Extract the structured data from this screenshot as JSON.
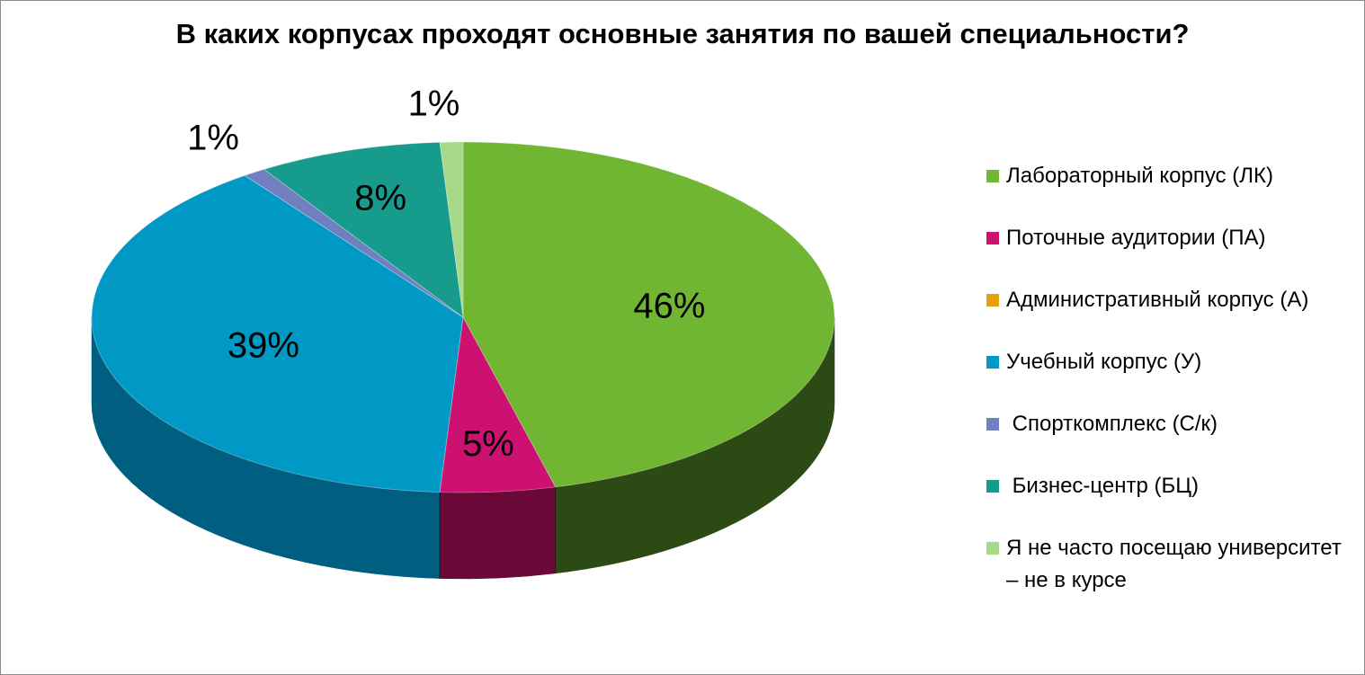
{
  "chart_data": {
    "type": "pie",
    "title": "В каких корпусах проходят основные занятия по вашей специальности?",
    "slices": [
      {
        "name": "Лабораторный корпус (ЛК)",
        "value": 46,
        "label": "46%",
        "color": "#71b632",
        "side_color": "#2c4a14"
      },
      {
        "name": "Поточные аудитории (ПА)",
        "value": 5,
        "label": "5%",
        "color": "#cc1170",
        "side_color": "#6a0838"
      },
      {
        "name": "Административный корпус (А)",
        "value": 0,
        "label": "",
        "color": "#e5a00d",
        "side_color": "#8a5f06"
      },
      {
        "name": "Учебный корпус (У)",
        "value": 39,
        "label": "39%",
        "color": "#0099c6",
        "side_color": "#005f80"
      },
      {
        "name": " Спорткомплекс (С/к)",
        "value": 1,
        "label": "1%",
        "color": "#6f7fbf",
        "side_color": "#3d4880"
      },
      {
        "name": " Бизнес-центр (БЦ)",
        "value": 8,
        "label": "8%",
        "color": "#169b8c",
        "side_color": "#0b5c53"
      },
      {
        "name": "Я не часто посещаю университет – не в курсе",
        "value": 1,
        "label": "1%",
        "color": "#a6da8a",
        "side_color": "#5f8a4a"
      }
    ],
    "legend_position": "right",
    "style": "3d-pie"
  }
}
